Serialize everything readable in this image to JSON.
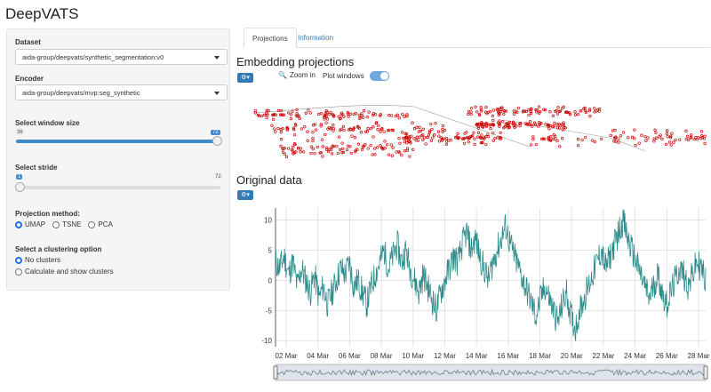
{
  "app": {
    "title": "DeepVATS"
  },
  "sidebar": {
    "dataset": {
      "label": "Dataset",
      "value": "aida-group/deepvats/synthetic_segmentation:v0"
    },
    "encoder": {
      "label": "Encoder",
      "value": "aida-group/deepvats/mvp:seg_synthetic"
    },
    "window_size": {
      "label": "Select window size",
      "min": "36",
      "max": "72",
      "value": "72",
      "fraction": 1.0
    },
    "stride": {
      "label": "Select stride",
      "min": "1",
      "max": "72",
      "value": "1",
      "fraction": 0.0
    },
    "projection": {
      "label": "Projection method:",
      "options": [
        "UMAP",
        "TSNE",
        "PCA"
      ],
      "selected": "UMAP"
    },
    "clustering": {
      "label": "Select a clustering option",
      "options": [
        "No clusters",
        "Calculate and show clusters"
      ],
      "selected": "No clusters"
    }
  },
  "tabs": [
    {
      "label": "Projections",
      "active": true
    },
    {
      "label": "Information",
      "active": false
    }
  ],
  "projections": {
    "title": "Embedding projections",
    "gear": "gear-icon",
    "zoom_label": "Zoom in",
    "plot_windows_label": "Plot windows",
    "plot_windows_on": true,
    "point_color": "#cc0000"
  },
  "original": {
    "title": "Original data",
    "gear": "gear-icon",
    "line_color": "#2e8b8b"
  },
  "chart_data": {
    "type": "line",
    "title": "",
    "xlabel": "",
    "ylabel": "",
    "x_ticks": [
      "02 Mar",
      "04 Mar",
      "06 Mar",
      "08 Mar",
      "10 Mar",
      "12 Mar",
      "14 Mar",
      "16 Mar",
      "18 Mar",
      "20 Mar",
      "22 Mar",
      "24 Mar",
      "26 Mar",
      "28 Mar"
    ],
    "y_ticks": [
      "10",
      "5",
      "0",
      "-5",
      "-10"
    ],
    "ylim": [
      -11,
      12
    ],
    "xlim": [
      "01 Mar",
      "29 Mar"
    ],
    "series": [
      {
        "values": [
          3,
          2,
          4,
          1,
          3,
          -1,
          2,
          0,
          -2,
          1,
          -3,
          -1,
          -4,
          -2,
          0,
          2,
          1,
          3,
          -1,
          0,
          -2,
          -4,
          -1,
          1,
          3,
          5,
          2,
          4,
          6,
          3,
          5,
          2,
          0,
          -2,
          1,
          -1,
          -3,
          -5,
          -2,
          0,
          2,
          4,
          3,
          6,
          8,
          5,
          7,
          4,
          2,
          0,
          3,
          5,
          7,
          9,
          6,
          4,
          2,
          0,
          -2,
          -4,
          -6,
          -3,
          -1,
          -3,
          -5,
          -7,
          -4,
          -2,
          -6,
          -8,
          -5,
          -3,
          -1,
          1,
          3,
          5,
          2,
          4,
          6,
          8,
          10,
          7,
          5,
          3,
          1,
          -1,
          -3,
          -1,
          1,
          -2,
          -4,
          -2,
          0,
          2,
          1,
          -1,
          1,
          3,
          2,
          0
        ]
      }
    ],
    "grid": true
  }
}
